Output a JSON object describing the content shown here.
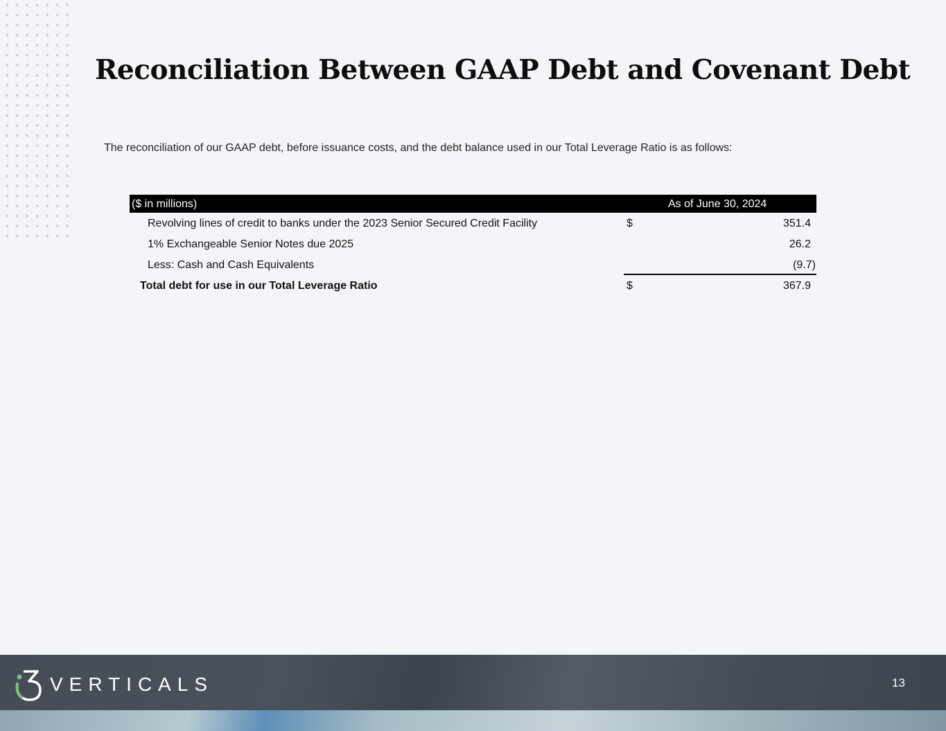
{
  "title": "Reconciliation Between GAAP Debt and Covenant Debt",
  "intro": "The reconciliation of our GAAP debt, before issuance costs, and the debt balance used in our Total Leverage Ratio is as follows:",
  "table": {
    "header_left": "($ in millions)",
    "header_right": "As of June 30, 2024",
    "rows": [
      {
        "label": "Revolving lines of credit to banks under the 2023 Senior Secured Credit Facility",
        "currency": "$",
        "value": "351.4"
      },
      {
        "label": "1% Exchangeable Senior Notes due 2025",
        "currency": "",
        "value": "26.2"
      },
      {
        "label": "Less: Cash and Cash Equivalents",
        "currency": "",
        "value": "(9.7)"
      }
    ],
    "total": {
      "label": "Total debt for use in our Total Leverage Ratio",
      "currency": "$",
      "value": "367.9"
    }
  },
  "footer": {
    "logo_text": "i3 VERTICALS",
    "logo_wordmark": "VERTICALS",
    "page_number": "13",
    "logo_accent": "#7cc47f"
  }
}
